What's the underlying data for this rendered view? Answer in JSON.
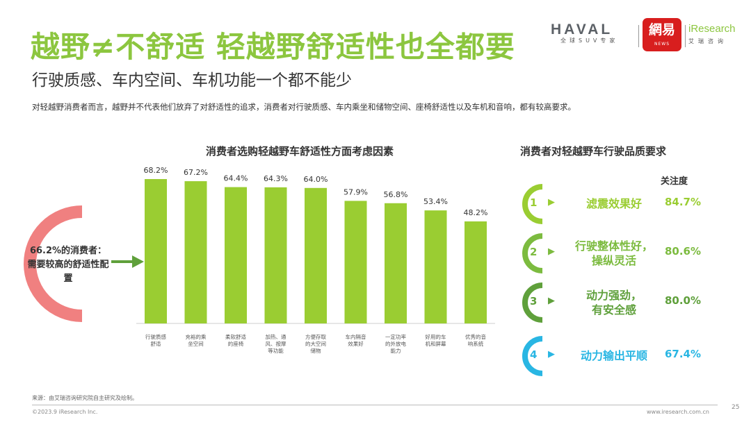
{
  "header": {
    "title": "越野≠不舒适 轻越野舒适性也全都要",
    "subtitle": "行驶质感、车内空间、车机功能一个都不能少",
    "description": "对轻越野消费者而言，越野并不代表他们放弃了对舒适性的追求，消费者对行驶质感、车内乘坐和储物空间、座椅舒适性以及车机和音响，都有较高要求。"
  },
  "logos": {
    "haval": "HAVAL",
    "haval_tagline": "全球SUV专家",
    "netease": "網易",
    "netease_sub": "NEWS",
    "iresearch": "iResearch",
    "iresearch_sub": "艾瑞咨询"
  },
  "callout": {
    "text": "66.2%的消费者：需要较高的舒适性配置",
    "value": 66.2
  },
  "chart_data": [
    {
      "type": "bar",
      "title": "消费者选购轻越野车舒适性方面考虑因素",
      "categories": [
        "行驶质感舒适",
        "充裕的乘坐空间",
        "柔软舒适的座椅",
        "加热、通风、按摩等功能",
        "方便存取的大空间储物",
        "车内隔音效果好",
        "一定功率的外放电能力",
        "好用的车机和屏幕",
        "优秀的音响系统"
      ],
      "values": [
        68.2,
        67.2,
        64.4,
        64.3,
        64.0,
        57.9,
        56.8,
        53.4,
        48.2
      ],
      "value_labels": [
        "68.2%",
        "67.2%",
        "64.4%",
        "64.3%",
        "64.0%",
        "57.9%",
        "56.8%",
        "53.4%",
        "48.2%"
      ],
      "ylim": [
        0,
        100
      ],
      "grid": false,
      "bar_color": "#9acd32"
    },
    {
      "type": "table",
      "title": "消费者对轻越野车行驶品质要求",
      "column_header": "关注度",
      "rows": [
        {
          "rank": "1",
          "label": "滤震效果好",
          "value": "84.7%",
          "color": "#9acd32"
        },
        {
          "rank": "2",
          "label": "行驶整体性好，操纵灵活",
          "value": "80.6%",
          "color": "#7cbb3f"
        },
        {
          "rank": "3",
          "label": "动力强劲，有安全感",
          "value": "80.0%",
          "color": "#5fa03b"
        },
        {
          "rank": "4",
          "label": "动力输出平顺",
          "value": "67.4%",
          "color": "#29b6e3"
        }
      ]
    }
  ],
  "footer": {
    "source": "来源：由艾瑞咨询研究院自主研究及绘制。",
    "copyright": "©2023.9 iResearch Inc.",
    "site": "www.iresearch.com.cn",
    "page": "25"
  }
}
